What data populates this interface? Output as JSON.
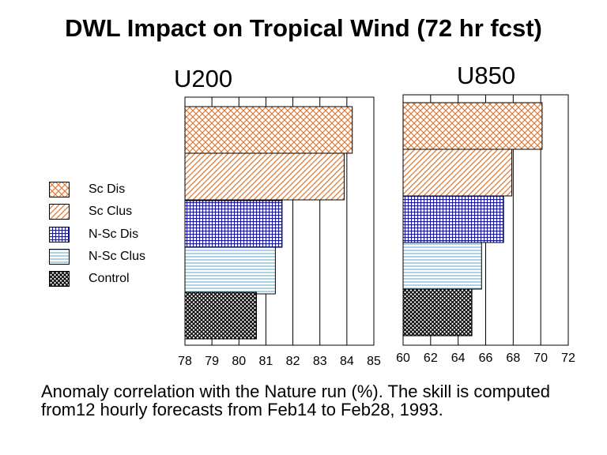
{
  "title": "DWL Impact on Tropical Wind (72 hr fcst)",
  "caption": "Anomaly correlation with the Nature run (%).  The skill is computed from12 hourly forecasts from Feb14 to Feb28, 1993.",
  "legend": [
    {
      "label": "Sc Dis",
      "pattern": "crosshatch-orange"
    },
    {
      "label": "Sc Clus",
      "pattern": "diagonal-orange"
    },
    {
      "label": "N-Sc Dis",
      "pattern": "grid-blue"
    },
    {
      "label": "N-Sc Clus",
      "pattern": "hlines-blue"
    },
    {
      "label": "Control",
      "pattern": "crosshatch-black"
    }
  ],
  "colors": {
    "orange": "#e07b39",
    "blue": "#1a1aa0",
    "lightblue": "#5aa6c8",
    "black": "#000000"
  },
  "chart_data": [
    {
      "type": "bar",
      "orientation": "horizontal",
      "title": "U200",
      "categories": [
        "Sc Dis",
        "Sc Clus",
        "N-Sc Dis",
        "N-Sc Clus",
        "Control"
      ],
      "values": [
        84.2,
        83.9,
        81.6,
        81.35,
        80.65
      ],
      "xlim": [
        78,
        85
      ],
      "xticks": [
        "78",
        "79",
        "80",
        "81",
        "82",
        "83",
        "84",
        "85"
      ],
      "grid": "vertical"
    },
    {
      "type": "bar",
      "orientation": "horizontal",
      "title": "U850",
      "categories": [
        "Sc Dis",
        "Sc Clus",
        "N-Sc Dis",
        "N-Sc Clus",
        "Control"
      ],
      "values": [
        70.1,
        67.9,
        67.3,
        65.7,
        65.0
      ],
      "xlim": [
        60,
        72
      ],
      "xticks": [
        "60",
        "62",
        "64",
        "66",
        "68",
        "70",
        "72"
      ],
      "grid": "vertical"
    }
  ]
}
